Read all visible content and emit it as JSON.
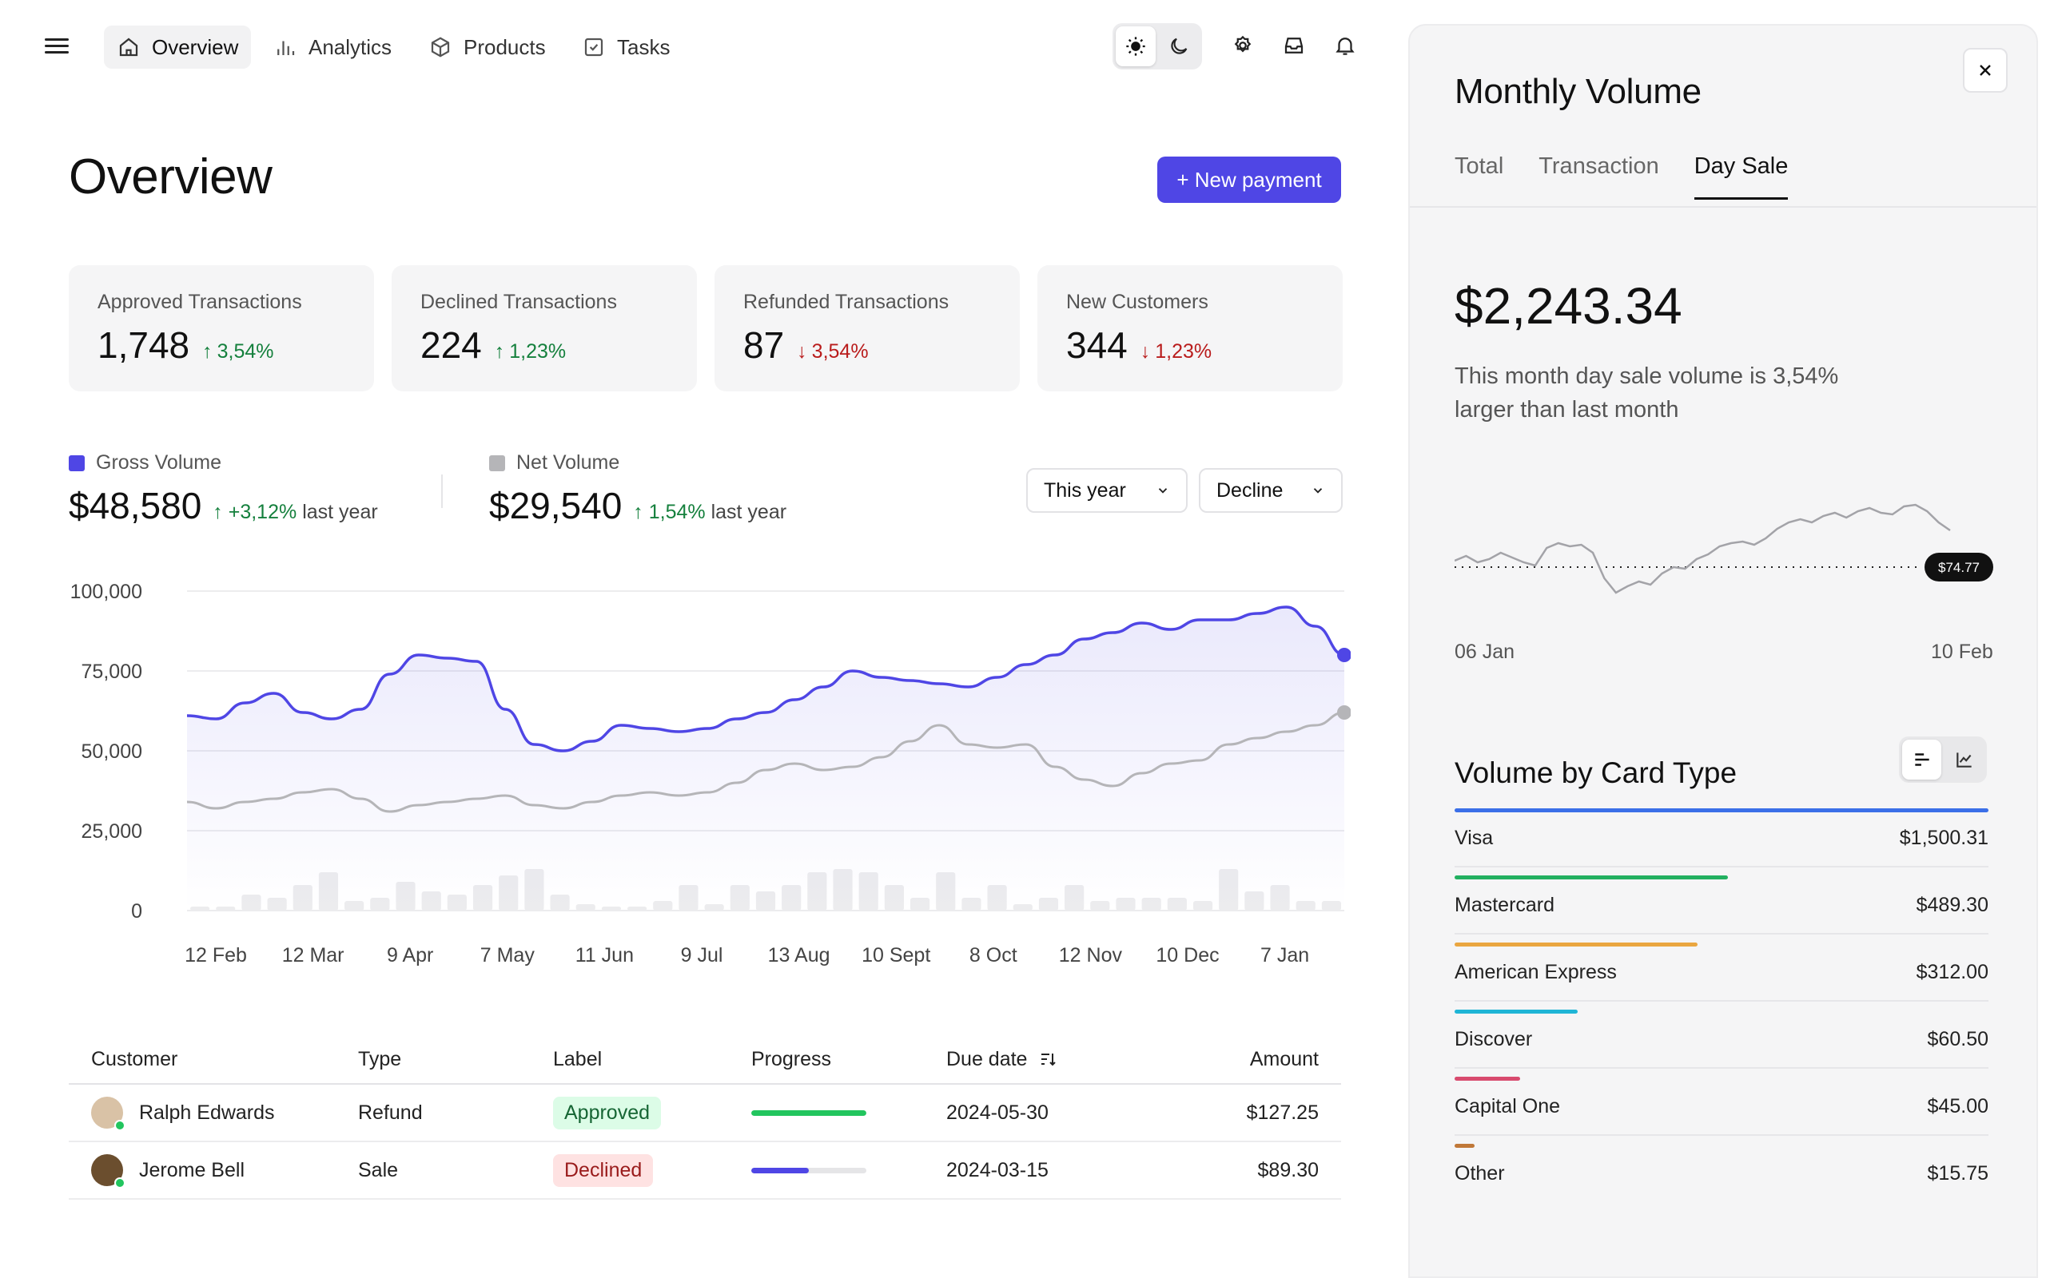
{
  "nav": {
    "tabs": [
      {
        "label": "Overview",
        "icon": "home-icon",
        "active": true
      },
      {
        "label": "Analytics",
        "icon": "bar-chart-icon",
        "active": false
      },
      {
        "label": "Products",
        "icon": "box-icon",
        "active": false
      },
      {
        "label": "Tasks",
        "icon": "checkbox-icon",
        "active": false
      }
    ]
  },
  "main": {
    "title": "Overview",
    "new_payment_label": "+ New payment",
    "stats": [
      {
        "label": "Approved Transactions",
        "value": "1,748",
        "delta": "3,54%",
        "direction": "up"
      },
      {
        "label": "Declined Transactions",
        "value": "224",
        "delta": "1,23%",
        "direction": "up"
      },
      {
        "label": "Refunded Transactions",
        "value": "87",
        "delta": "3,54%",
        "direction": "down"
      },
      {
        "label": "New Customers",
        "value": "344",
        "delta": "1,23%",
        "direction": "down"
      }
    ],
    "gross": {
      "label": "Gross Volume",
      "value": "$48,580",
      "delta": "+3,12%",
      "suffix": "last year",
      "color": "#4f46e5"
    },
    "net": {
      "label": "Net Volume",
      "value": "$29,540",
      "delta": "1,54%",
      "suffix": "last year",
      "color": "#b5b5b8"
    },
    "filters": {
      "period": "This year",
      "mode": "Decline"
    }
  },
  "chart_data": {
    "type": "line",
    "y_ticks": [
      "100,000",
      "75,000",
      "50,000",
      "25,000",
      "0"
    ],
    "ylim": [
      0,
      100000
    ],
    "x_ticks": [
      "12 Feb",
      "12 Mar",
      "9 Apr",
      "7 May",
      "11 Jun",
      "9 Jul",
      "13 Aug",
      "10 Sept",
      "8 Oct",
      "12 Nov",
      "10 Dec",
      "7 Jan"
    ],
    "series": [
      {
        "name": "Gross Volume",
        "color": "#4f46e5",
        "values": [
          61000,
          60000,
          65000,
          68000,
          62000,
          60000,
          63000,
          74000,
          80000,
          79000,
          78000,
          63000,
          52000,
          50000,
          53000,
          58000,
          57000,
          56000,
          57000,
          60000,
          62000,
          66000,
          70000,
          75000,
          73000,
          72000,
          71000,
          70000,
          73000,
          77000,
          80000,
          85000,
          87000,
          90000,
          88000,
          91000,
          91000,
          93000,
          95000,
          89000,
          80000
        ]
      },
      {
        "name": "Net Volume",
        "color": "#b5b5b8",
        "values": [
          34000,
          32000,
          34000,
          35000,
          37000,
          38000,
          35000,
          31000,
          33000,
          34000,
          35000,
          36000,
          33000,
          32000,
          34000,
          36000,
          37000,
          36000,
          37000,
          40000,
          44000,
          46000,
          44000,
          45000,
          48000,
          53000,
          58000,
          52000,
          51000,
          52000,
          45000,
          41000,
          39000,
          43000,
          46000,
          47000,
          52000,
          54000,
          56000,
          58000,
          62000
        ]
      }
    ],
    "volume_bars": [
      1,
      1,
      5,
      4,
      8,
      12,
      3,
      4,
      9,
      6,
      5,
      8,
      11,
      13,
      5,
      2,
      1,
      1,
      3,
      8,
      2,
      8,
      6,
      8,
      12,
      13,
      12,
      8,
      4,
      12,
      4,
      8,
      2,
      4,
      8,
      3,
      4,
      4,
      4,
      3,
      13,
      6,
      8,
      3,
      3
    ]
  },
  "table": {
    "headers": [
      "Customer",
      "Type",
      "Label",
      "Progress",
      "Due date",
      "Amount"
    ],
    "rows": [
      {
        "customer": "Ralph Edwards",
        "type": "Refund",
        "label": "Approved",
        "label_kind": "ok",
        "progress": 1.0,
        "progress_color": "#22c55e",
        "due": "2024-05-30",
        "amount": "$127.25",
        "avatar_color": "#d9c2a6"
      },
      {
        "customer": "Jerome Bell",
        "type": "Sale",
        "label": "Declined",
        "label_kind": "bad",
        "progress": 0.5,
        "progress_color": "#4f46e5",
        "due": "2024-03-15",
        "amount": "$89.30",
        "avatar_color": "#6b4e2e"
      }
    ]
  },
  "panel": {
    "title": "Monthly Volume",
    "tabs": [
      {
        "label": "Total",
        "active": false
      },
      {
        "label": "Transaction",
        "active": false
      },
      {
        "label": "Day Sale",
        "active": true
      }
    ],
    "amount": "$2,243.34",
    "description": "This month day sale volume is 3,54% larger than last month",
    "sparkline": {
      "start_label": "06 Jan",
      "end_label": "10 Feb",
      "reference_label": "$74.77",
      "values": [
        70,
        76,
        68,
        72,
        80,
        74,
        68,
        64,
        86,
        92,
        88,
        90,
        80,
        48,
        30,
        38,
        44,
        40,
        54,
        62,
        60,
        72,
        78,
        88,
        92,
        94,
        90,
        98,
        110,
        118,
        122,
        118,
        126,
        130,
        124,
        132,
        136,
        130,
        128,
        138,
        140,
        132,
        118,
        108
      ]
    },
    "card_type_title": "Volume by Card Type",
    "card_types": [
      {
        "name": "Visa",
        "amount": "$1,500.31",
        "color": "#3b6fe8",
        "share": 1.0
      },
      {
        "name": "Mastercard",
        "amount": "$489.30",
        "color": "#22b060",
        "share": 0.512
      },
      {
        "name": "American Express",
        "amount": "$312.00",
        "color": "#eaa640",
        "share": 0.455
      },
      {
        "name": "Discover",
        "amount": "$60.50",
        "color": "#1fb5d6",
        "share": 0.23
      },
      {
        "name": "Capital One",
        "amount": "$45.00",
        "color": "#d84a6e",
        "share": 0.123
      },
      {
        "name": "Other",
        "amount": "$15.75",
        "color": "#c07838",
        "share": 0.038
      }
    ]
  }
}
